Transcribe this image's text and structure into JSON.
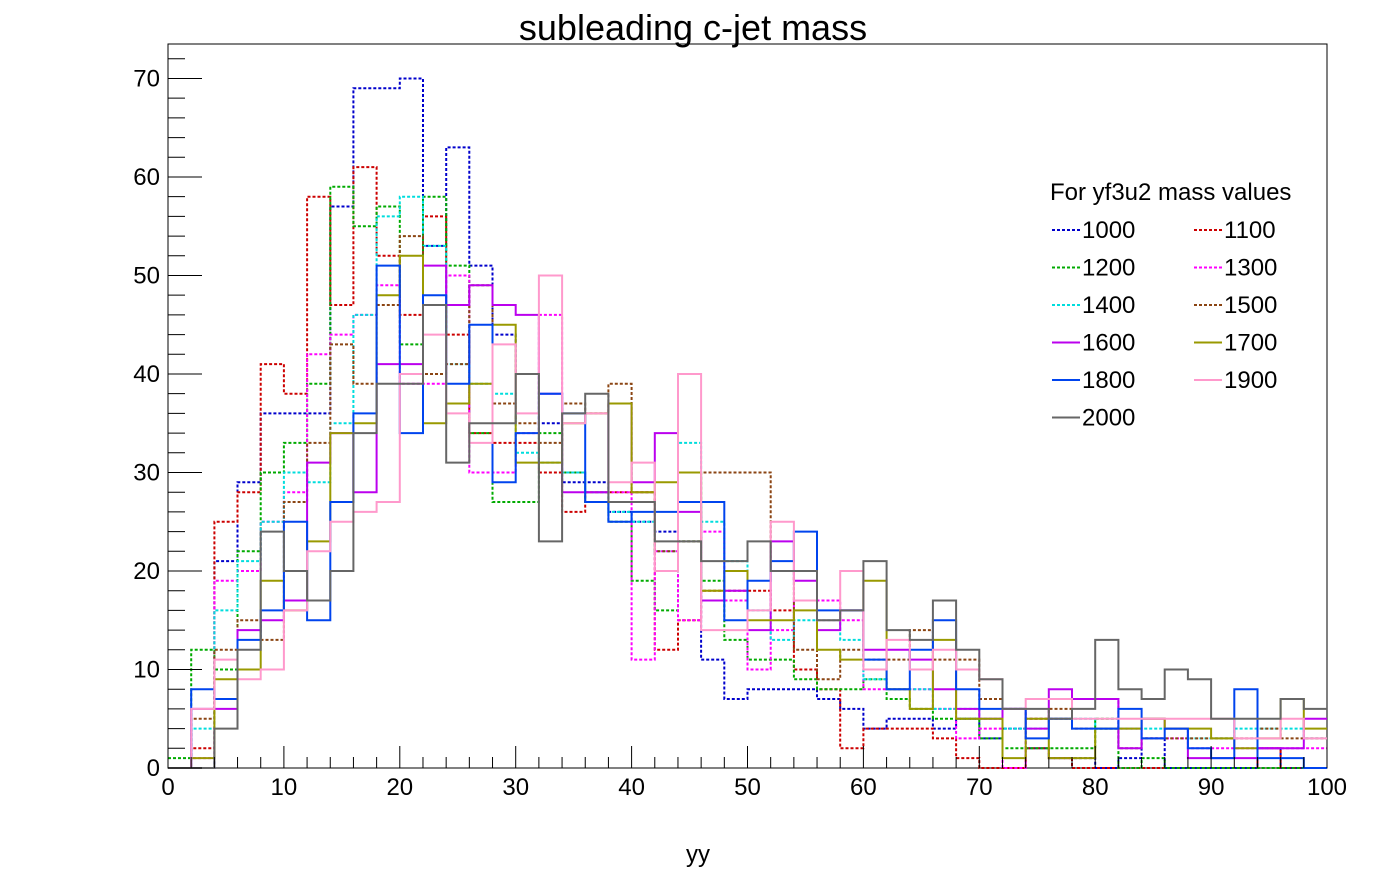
{
  "chart_data": {
    "type": "histogram",
    "title": "subleading c-jet mass",
    "xlabel": "yy",
    "ylabel": "",
    "xlim": [
      0,
      100
    ],
    "ylim": [
      0,
      73.5
    ],
    "x_ticks": [
      0,
      10,
      20,
      30,
      40,
      50,
      60,
      70,
      80,
      90,
      100
    ],
    "y_ticks": [
      0,
      10,
      20,
      30,
      40,
      50,
      60,
      70
    ],
    "bin_edges_start": 0,
    "bin_width": 2,
    "legend": {
      "title": "For yf3u2 mass values",
      "placement": "right",
      "columns": 2
    },
    "series": [
      {
        "name": "1000",
        "color": "#0000cc",
        "style": "dotted",
        "values": [
          0,
          0,
          21,
          29,
          36,
          36,
          36,
          57,
          69,
          69,
          70,
          53,
          63,
          51,
          44,
          40,
          35,
          29,
          29,
          26,
          25,
          24,
          27,
          11,
          7,
          8,
          8,
          8,
          7,
          6,
          4,
          5,
          5,
          4,
          5,
          3,
          4,
          2,
          1,
          1,
          0,
          1,
          3,
          0,
          0,
          0,
          0,
          2,
          0,
          0
        ]
      },
      {
        "name": "1100",
        "color": "#cc0000",
        "style": "dotted",
        "values": [
          0,
          2,
          25,
          28,
          41,
          38,
          58,
          47,
          61,
          52,
          46,
          56,
          44,
          34,
          33,
          33,
          30,
          26,
          28,
          28,
          28,
          12,
          15,
          18,
          18,
          18,
          16,
          10,
          8,
          2,
          4,
          4,
          4,
          3,
          1,
          0,
          0,
          2,
          1,
          0,
          0,
          0,
          0,
          0,
          0,
          0,
          0,
          2,
          0,
          0
        ]
      },
      {
        "name": "1200",
        "color": "#00aa00",
        "style": "dotted",
        "values": [
          1,
          12,
          10,
          22,
          30,
          33,
          39,
          59,
          55,
          57,
          43,
          58,
          51,
          34,
          27,
          27,
          34,
          30,
          27,
          25,
          19,
          16,
          23,
          19,
          13,
          11,
          11,
          9,
          8,
          8,
          9,
          7,
          6,
          5,
          5,
          3,
          2,
          2,
          2,
          2,
          5,
          0,
          1,
          0,
          0,
          0,
          0,
          0,
          0,
          0
        ]
      },
      {
        "name": "1300",
        "color": "#ff00ff",
        "style": "dotted",
        "values": [
          0,
          1,
          19,
          20,
          25,
          28,
          42,
          44,
          46,
          49,
          39,
          39,
          50,
          30,
          30,
          34,
          46,
          30,
          28,
          28,
          11,
          22,
          15,
          24,
          17,
          10,
          14,
          17,
          17,
          15,
          8,
          8,
          8,
          6,
          3,
          4,
          0,
          5,
          5,
          7,
          7,
          4,
          3,
          3,
          2,
          2,
          2,
          2,
          2,
          2
        ]
      },
      {
        "name": "1400",
        "color": "#00dddd",
        "style": "dotted",
        "values": [
          0,
          4,
          16,
          21,
          25,
          30,
          29,
          35,
          46,
          56,
          58,
          53,
          41,
          39,
          38,
          32,
          31,
          30,
          28,
          26,
          25,
          22,
          33,
          25,
          21,
          16,
          13,
          15,
          15,
          13,
          9,
          8,
          8,
          6,
          6,
          5,
          4,
          4,
          5,
          5,
          4,
          4,
          4,
          4,
          3,
          3,
          4,
          4,
          4,
          3
        ]
      },
      {
        "name": "1500",
        "color": "#8b4513",
        "style": "dotted",
        "values": [
          0,
          5,
          12,
          15,
          13,
          27,
          33,
          43,
          39,
          47,
          54,
          40,
          41,
          49,
          37,
          35,
          33,
          37,
          36,
          39,
          28,
          22,
          23,
          30,
          30,
          30,
          20,
          12,
          9,
          12,
          11,
          11,
          14,
          11,
          11,
          7,
          6,
          5,
          6,
          4,
          4,
          2,
          3,
          3,
          3,
          3,
          3,
          4,
          3,
          3
        ]
      },
      {
        "name": "1600",
        "color": "#bb00ee",
        "style": "solid",
        "values": [
          0,
          6,
          6,
          14,
          15,
          17,
          31,
          34,
          28,
          41,
          41,
          51,
          47,
          49,
          47,
          46,
          38,
          28,
          28,
          37,
          29,
          34,
          26,
          17,
          18,
          14,
          23,
          19,
          14,
          16,
          12,
          12,
          11,
          8,
          6,
          5,
          6,
          4,
          8,
          7,
          7,
          2,
          5,
          4,
          1,
          1,
          1,
          2,
          2,
          5
        ]
      },
      {
        "name": "1700",
        "color": "#999900",
        "style": "solid",
        "values": [
          0,
          1,
          9,
          10,
          19,
          16,
          23,
          34,
          35,
          48,
          52,
          35,
          37,
          39,
          45,
          31,
          31,
          35,
          36,
          37,
          28,
          29,
          30,
          18,
          20,
          15,
          15,
          16,
          12,
          11,
          19,
          8,
          6,
          13,
          5,
          5,
          1,
          5,
          1,
          1,
          4,
          4,
          5,
          4,
          4,
          3,
          2,
          3,
          7,
          4
        ]
      },
      {
        "name": "1800",
        "color": "#0044ee",
        "style": "solid",
        "values": [
          0,
          8,
          7,
          13,
          16,
          25,
          15,
          27,
          36,
          51,
          34,
          48,
          39,
          45,
          29,
          34,
          38,
          36,
          27,
          25,
          26,
          26,
          27,
          27,
          15,
          19,
          21,
          24,
          16,
          16,
          11,
          8,
          12,
          15,
          8,
          6,
          6,
          3,
          5,
          4,
          4,
          6,
          3,
          4,
          2,
          1,
          8,
          1,
          1,
          0
        ]
      },
      {
        "name": "1900",
        "color": "#ff99cc",
        "style": "solid",
        "values": [
          0,
          6,
          11,
          9,
          10,
          16,
          22,
          25,
          26,
          27,
          40,
          44,
          36,
          33,
          43,
          36,
          50,
          35,
          36,
          29,
          31,
          20,
          40,
          14,
          14,
          16,
          25,
          17,
          15,
          20,
          10,
          13,
          10,
          12,
          10,
          9,
          6,
          7,
          7,
          5,
          5,
          5,
          5,
          5,
          5,
          5,
          3,
          3,
          5,
          3
        ]
      },
      {
        "name": "2000",
        "color": "#666666",
        "style": "solid",
        "values": [
          0,
          0,
          4,
          12,
          24,
          20,
          17,
          20,
          34,
          39,
          39,
          47,
          31,
          35,
          35,
          40,
          23,
          36,
          38,
          27,
          27,
          23,
          23,
          21,
          21,
          23,
          20,
          20,
          15,
          16,
          21,
          14,
          13,
          17,
          12,
          9,
          6,
          6,
          5,
          6,
          13,
          8,
          7,
          10,
          9,
          5,
          5,
          5,
          7,
          6
        ]
      }
    ]
  }
}
